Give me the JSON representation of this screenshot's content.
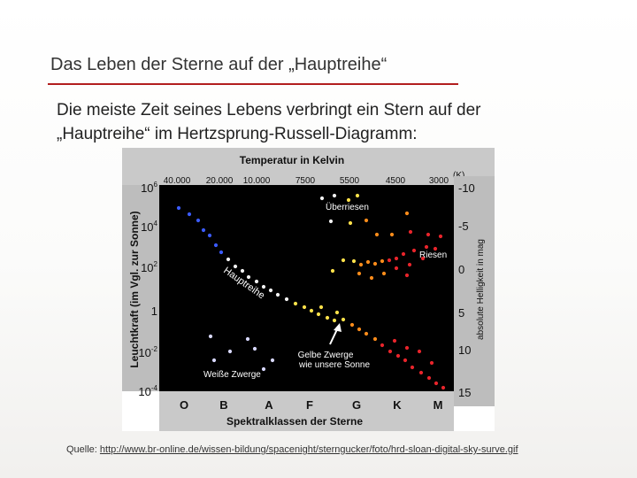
{
  "slide": {
    "title": "Das Leben der Sterne auf der „Hauptreihe“",
    "subtitle_line1": "Die meiste Zeit seines Lebens verbringt ein Stern auf der",
    "subtitle_line2": "„Hauptreihe“ im Hertzsprung-Russell-Diagramm:",
    "source_label": "Quelle: ",
    "source_url": "http://www.br-online.de/wissen-bildung/spacenight/sterngucker/foto/hrd-sloan-digital-sky-surve.gif"
  },
  "diagram": {
    "top_title": "Temperatur in Kelvin",
    "temperatures": [
      "40.000",
      "20.000",
      "10.000",
      "7500",
      "5500",
      "4500",
      "3000"
    ],
    "temperature_unit": "(K)",
    "luminosity_ticks": [
      {
        "base": "10",
        "exp": "6"
      },
      {
        "base": "10",
        "exp": "4"
      },
      {
        "base": "10",
        "exp": "2"
      },
      {
        "base": "1",
        "exp": ""
      },
      {
        "base": "10",
        "exp": "-2"
      },
      {
        "base": "10",
        "exp": "-4"
      }
    ],
    "magnitude_ticks": [
      "-10",
      "-5",
      "0",
      "5",
      "10",
      "15"
    ],
    "left_axis_label": "Leuchtkraft (im Vgl. zur Sonne)",
    "right_axis_label": "absolute Helligkeit in mag",
    "spectral_classes": [
      "O",
      "B",
      "A",
      "F",
      "G",
      "K",
      "M"
    ],
    "bottom_axis_label": "Spektralklassen der Sterne",
    "labels": {
      "supergiants": "Überriesen",
      "giants": "Riesen",
      "main_sequence": "Hauptreihe",
      "yellow_dwarfs_1": "Gelbe Zwerge",
      "yellow_dwarfs_2": "wie unsere Sonne",
      "white_dwarfs": "Weiße Zwerge"
    },
    "colors": {
      "background": "#000000",
      "o_stars": "#3b5bff",
      "a_stars": "#f2f2f2",
      "g_stars": "#ffe14a",
      "k_stars": "#ff8c1a",
      "m_stars": "#e8242b",
      "white_dwarfs": "#d8d8ff"
    }
  }
}
